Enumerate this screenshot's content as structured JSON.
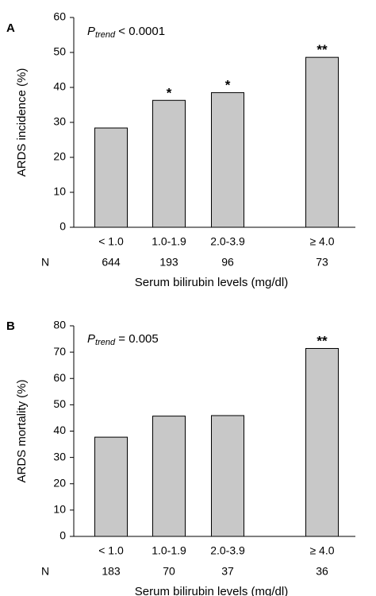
{
  "chart_data": [
    {
      "type": "bar",
      "panel_label": "A",
      "categories": [
        "< 1.0",
        "1.0-1.9",
        "2.0-3.9",
        "≥ 4.0"
      ],
      "n_label": "N",
      "n_values": [
        "644",
        "193",
        "96",
        "73"
      ],
      "values": [
        28.4,
        36.3,
        38.5,
        48.6
      ],
      "significance": [
        "",
        "*",
        "*",
        "**"
      ],
      "annotation": {
        "p": "P",
        "sub": "trend",
        "rest": " < 0.0001"
      },
      "xlabel": "Serum bilirubin levels (mg/dl)",
      "ylabel": "ARDS incidence (%)",
      "ylim": [
        0,
        60
      ],
      "yticks": [
        0,
        10,
        20,
        30,
        40,
        50,
        60
      ],
      "bar_color": "#c8c8c8",
      "grid": false
    },
    {
      "type": "bar",
      "panel_label": "B",
      "categories": [
        "< 1.0",
        "1.0-1.9",
        "2.0-3.9",
        "≥ 4.0"
      ],
      "n_label": "N",
      "n_values": [
        "183",
        "70",
        "37",
        "36"
      ],
      "values": [
        37.7,
        45.7,
        45.9,
        71.4
      ],
      "significance": [
        "",
        "",
        "",
        "**"
      ],
      "annotation": {
        "p": "P",
        "sub": "trend",
        "rest": " = 0.005"
      },
      "xlabel": "Serum bilirubin levels (mg/dl)",
      "ylabel": "ARDS mortality (%)",
      "ylim": [
        0,
        80
      ],
      "yticks": [
        0,
        10,
        20,
        30,
        40,
        50,
        60,
        70,
        80
      ],
      "bar_color": "#c8c8c8",
      "grid": false
    }
  ]
}
